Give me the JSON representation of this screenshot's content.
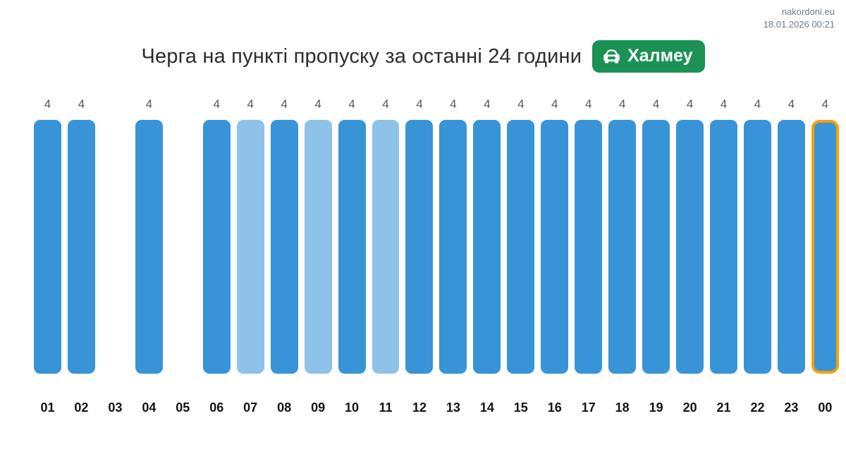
{
  "meta": {
    "site": "nakordoni.eu",
    "timestamp": "18.01.2026 00:21"
  },
  "header": {
    "title": "Черга на пункті пропуску за останні 24 години",
    "checkpoint_badge": {
      "label": "Халмеу",
      "icon": "car-front-icon",
      "background": "#1b9254",
      "text_color": "#ffffff"
    }
  },
  "chart_data": {
    "type": "bar",
    "title": "Черга на пункті пропуску за останні 24 години",
    "xlabel": "",
    "ylabel": "",
    "categories": [
      "01",
      "02",
      "03",
      "04",
      "05",
      "06",
      "07",
      "08",
      "09",
      "10",
      "11",
      "12",
      "13",
      "14",
      "15",
      "16",
      "17",
      "18",
      "19",
      "20",
      "21",
      "22",
      "23",
      "00"
    ],
    "values": [
      4,
      4,
      null,
      4,
      null,
      4,
      4,
      4,
      4,
      4,
      4,
      4,
      4,
      4,
      4,
      4,
      4,
      4,
      4,
      4,
      4,
      4,
      4,
      4
    ],
    "point_styles": [
      "normal",
      "normal",
      null,
      "normal",
      null,
      "normal",
      "light",
      "normal",
      "light",
      "normal",
      "light",
      "normal",
      "normal",
      "normal",
      "normal",
      "normal",
      "normal",
      "normal",
      "normal",
      "normal",
      "normal",
      "normal",
      "normal",
      "current"
    ],
    "ylim": [
      0,
      4
    ],
    "grid": false,
    "value_labels_shown": true,
    "legend": "none",
    "colors": {
      "bar": "#3894d6",
      "bar_light": "#8fc2e8",
      "current_outline": "#f9a008",
      "value_label": "#52565e",
      "axis_label": "#141414"
    }
  }
}
